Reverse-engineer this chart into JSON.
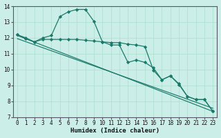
{
  "xlabel": "Humidex (Indice chaleur)",
  "bg_color": "#cceee8",
  "grid_color": "#aaddcc",
  "line_color": "#1a7a6a",
  "xlim": [
    -0.5,
    23.5
  ],
  "ylim": [
    7,
    14
  ],
  "yticks": [
    7,
    8,
    9,
    10,
    11,
    12,
    13,
    14
  ],
  "xticks": [
    0,
    1,
    2,
    3,
    4,
    5,
    6,
    7,
    8,
    9,
    10,
    11,
    12,
    13,
    14,
    15,
    16,
    17,
    18,
    19,
    20,
    21,
    22,
    23
  ],
  "line1_x": [
    0,
    1,
    2,
    3,
    4,
    5,
    6,
    7,
    8,
    9,
    10,
    11,
    12,
    13,
    14,
    15,
    16,
    17,
    18,
    19,
    20,
    21,
    22,
    23
  ],
  "line1_y": [
    12.2,
    12.0,
    11.75,
    12.0,
    12.15,
    13.35,
    13.65,
    13.8,
    13.8,
    13.05,
    11.75,
    11.55,
    11.55,
    10.45,
    10.6,
    10.45,
    10.1,
    9.35,
    9.6,
    9.1,
    8.3,
    8.1,
    8.1,
    7.35
  ],
  "line2_x": [
    0,
    1,
    2,
    3,
    4,
    5,
    6,
    7,
    8,
    9,
    10,
    11,
    12,
    13,
    14,
    15,
    16,
    17,
    18,
    19,
    20,
    21,
    22,
    23
  ],
  "line2_y": [
    12.2,
    11.95,
    11.75,
    11.9,
    11.9,
    11.9,
    11.9,
    11.9,
    11.85,
    11.8,
    11.75,
    11.7,
    11.7,
    11.6,
    11.55,
    11.45,
    9.95,
    9.35,
    9.6,
    9.05,
    8.3,
    8.1,
    8.1,
    7.35
  ],
  "line3_x": [
    0,
    23
  ],
  "line3_y": [
    12.15,
    7.35
  ],
  "line4_x": [
    0,
    23
  ],
  "line4_y": [
    11.95,
    7.55
  ]
}
